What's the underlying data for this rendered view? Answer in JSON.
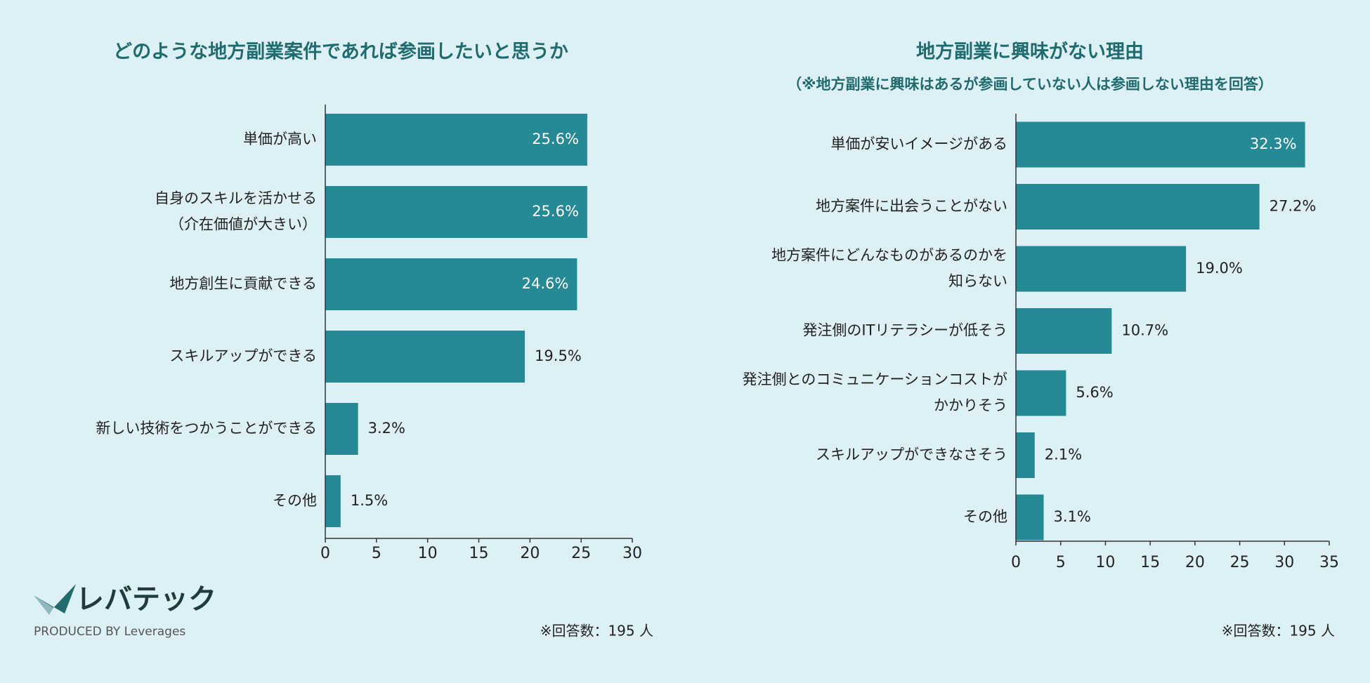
{
  "brand": {
    "logo": "レバテック",
    "tagline": "PRODUCED BY Leverages"
  },
  "chart_data": [
    {
      "type": "hbar",
      "title": "どのような地方副業案件であれば参画したいと思うか",
      "categories": [
        [
          "単価が高い"
        ],
        [
          "自身のスキルを活かせる",
          "（介在価値が大きい）"
        ],
        [
          "地方創生に貢献できる"
        ],
        [
          "スキルアップができる"
        ],
        [
          "新しい技術をつかうことができる"
        ],
        [
          "その他"
        ]
      ],
      "values": [
        25.6,
        25.6,
        24.6,
        19.5,
        3.2,
        1.5
      ],
      "value_labels": [
        "25.6%",
        "25.6%",
        "24.6%",
        "19.5%",
        "3.2%",
        "1.5%"
      ],
      "color": "#258a96",
      "xlim": [
        0,
        30
      ],
      "xticks": [
        0,
        5,
        10,
        15,
        20,
        25,
        30
      ],
      "note": "※回答数：195 人"
    },
    {
      "type": "hbar",
      "title": "地方副業に興味がない理由",
      "subtitle": "（※地方副業に興味はあるが参画していない人は参画しない理由を回答）",
      "categories": [
        [
          "単価が安いイメージがある"
        ],
        [
          "地方案件に出会うことがない"
        ],
        [
          "地方案件にどんなものがあるのかを",
          "知らない"
        ],
        [
          "発注側のITリテラシーが低そう"
        ],
        [
          "発注側とのコミュニケーションコストが",
          "かかりそう"
        ],
        [
          "スキルアップができなさそう"
        ],
        [
          "その他"
        ]
      ],
      "values": [
        32.3,
        27.2,
        19.0,
        10.7,
        5.6,
        2.1,
        3.1
      ],
      "value_labels": [
        "32.3%",
        "27.2%",
        "19.0%",
        "10.7%",
        "5.6%",
        "2.1%",
        "3.1%"
      ],
      "color": "#258a96",
      "xlim": [
        0,
        35
      ],
      "xticks": [
        0,
        5,
        10,
        15,
        20,
        25,
        30,
        35
      ],
      "note": "※回答数：195 人"
    }
  ]
}
